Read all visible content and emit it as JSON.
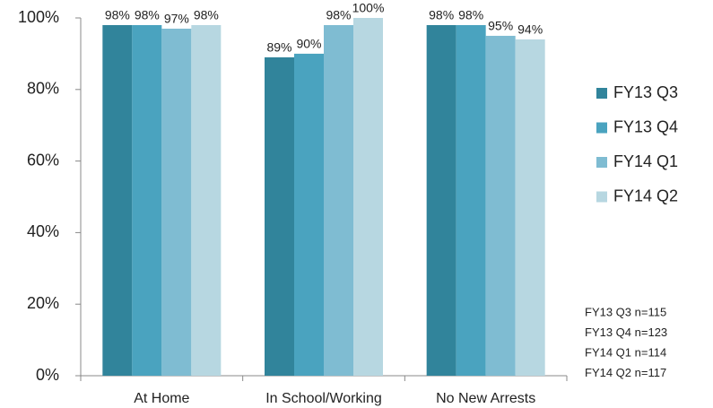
{
  "chart_data": {
    "type": "bar",
    "categories": [
      "At Home",
      "In School/Working",
      "No New Arrests"
    ],
    "series": [
      {
        "name": "FY13 Q3",
        "color": "#31849b",
        "values": [
          98,
          89,
          98
        ],
        "value_labels": [
          "98%",
          "89%",
          "98%"
        ]
      },
      {
        "name": "FY13 Q4",
        "color": "#4aa3bf",
        "values": [
          98,
          90,
          98
        ],
        "value_labels": [
          "98%",
          "90%",
          "98%"
        ]
      },
      {
        "name": "FY14 Q1",
        "color": "#7fbcd2",
        "values": [
          97,
          98,
          95
        ],
        "value_labels": [
          "97%",
          "98%",
          "95%"
        ]
      },
      {
        "name": "FY14 Q2",
        "color": "#b7d7e1",
        "values": [
          98,
          100,
          94
        ],
        "value_labels": [
          "98%",
          "100%",
          "94%"
        ]
      }
    ],
    "ylim": [
      0,
      100
    ],
    "yticks": [
      {
        "value": 0,
        "label": "0%"
      },
      {
        "value": 20,
        "label": "20%"
      },
      {
        "value": 40,
        "label": "40%"
      },
      {
        "value": 60,
        "label": "60%"
      },
      {
        "value": 80,
        "label": "80%"
      },
      {
        "value": 100,
        "label": "100%"
      }
    ],
    "legend": "right",
    "annotations": [
      "FY13 Q3 n=115",
      "FY13 Q4 n=123",
      "FY14 Q1 n=114",
      "FY14 Q2 n=117"
    ]
  }
}
